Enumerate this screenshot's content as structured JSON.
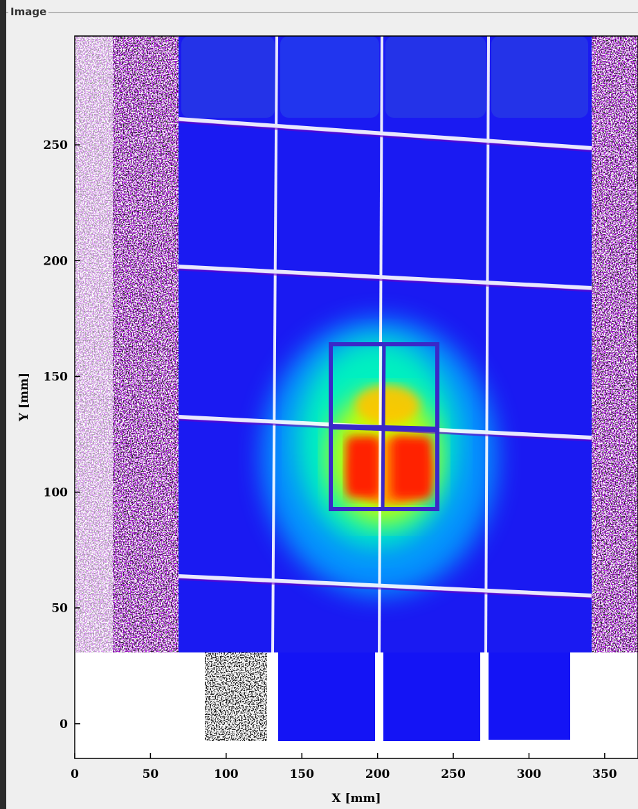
{
  "panel": {
    "title": "Image"
  },
  "chart_data": {
    "type": "heatmap",
    "title": "",
    "xlabel": "X [mm]",
    "ylabel": "Y [mm]",
    "xlim": [
      0,
      372
    ],
    "ylim": [
      -15,
      297
    ],
    "x_ticks": [
      0,
      50,
      100,
      150,
      200,
      250,
      300,
      350
    ],
    "y_ticks": [
      0,
      50,
      100,
      150,
      200,
      250
    ],
    "colormap": [
      "#ffffff",
      "#6a00c8",
      "#0000ff",
      "#0070ff",
      "#00d8ff",
      "#00ff90",
      "#c8ff00",
      "#ffd000",
      "#ff5000",
      "#ff0000"
    ],
    "background_color": "#ffffff",
    "grid": false
  }
}
